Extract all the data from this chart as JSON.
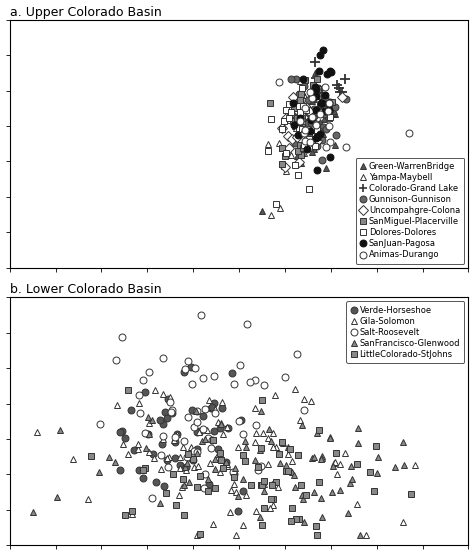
{
  "title_a": "a. Upper Colorado Basin",
  "title_b": "b. Lower Colorado Basin",
  "legend_a_labels": [
    "Green-WarrenBridge",
    "Yampa-Maybell",
    "Colorado-Grand Lake",
    "Gunnison-Gunnison",
    "Uncompahgre-Colona",
    "SanMiguel-Placerville",
    "Dolores-Dolores",
    "SanJuan-Pagosa",
    "Animas-Durango"
  ],
  "legend_b_labels": [
    "Verde-Horseshoe",
    "Gila-Solomon",
    "Salt-Roosevelt",
    "SanFrancisco-Glenwood",
    "LittleColorado-StJohns"
  ],
  "xlim": [
    0.0,
    1.0
  ],
  "ylim_a": [
    0,
    7
  ],
  "ylim_b": [
    0,
    7
  ],
  "marker_size": 5
}
